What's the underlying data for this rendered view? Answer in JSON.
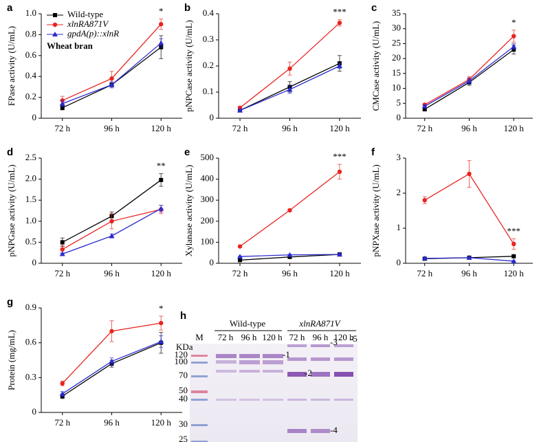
{
  "chart_data": [
    {
      "type": "line",
      "panel_label": "a",
      "ylabel": "FPase activity (U/mL)",
      "categories": [
        "72 h",
        "96 h",
        "120 h"
      ],
      "ylim": [
        0,
        1
      ],
      "yticks": [
        0,
        0.2,
        0.4,
        0.6,
        0.8,
        {
          "value": 1,
          "label": "1.0"
        }
      ],
      "annotation": "*",
      "note": "Wheat bran",
      "legend": "upper left",
      "series": [
        {
          "name": "Wild-type",
          "color": "#000000",
          "marker": "square",
          "values": [
            0.1,
            0.32,
            0.68
          ],
          "errors": [
            0.02,
            0.02,
            0.11
          ]
        },
        {
          "name": "xlnRA871V",
          "color": "#e8231f",
          "marker": "circle",
          "values": [
            0.17,
            0.38,
            0.9
          ],
          "errors": [
            0.04,
            0.07,
            0.05
          ]
        },
        {
          "name": "gpdA(p)::xlnR",
          "color": "#2a2ad0",
          "marker": "triangle",
          "values": [
            0.14,
            0.32,
            0.72
          ],
          "errors": [
            0.03,
            0.03,
            0.04
          ]
        }
      ]
    },
    {
      "type": "line",
      "panel_label": "b",
      "ylabel": "pNPCase activity (U/mL)",
      "categories": [
        "72 h",
        "96 h",
        "120 h"
      ],
      "ylim": [
        0,
        0.4
      ],
      "yticks": [
        0,
        0.1,
        0.2,
        0.3,
        0.4
      ],
      "annotation": "***",
      "series": [
        {
          "color": "#000000",
          "marker": "square",
          "values": [
            0.03,
            0.12,
            0.21
          ],
          "errors": [
            0.005,
            0.02,
            0.03
          ]
        },
        {
          "color": "#e8231f",
          "marker": "circle",
          "values": [
            0.04,
            0.19,
            0.365
          ],
          "errors": [
            0.005,
            0.025,
            0.012
          ]
        },
        {
          "color": "#2a2ad0",
          "marker": "triangle",
          "values": [
            0.03,
            0.11,
            0.2
          ],
          "errors": [
            0.005,
            0.015,
            0.01
          ]
        }
      ]
    },
    {
      "type": "line",
      "panel_label": "c",
      "ylabel": "CMCase activity (U/mL)",
      "categories": [
        "72 h",
        "96 h",
        "120 h"
      ],
      "ylim": [
        0,
        35
      ],
      "yticks": [
        0,
        5,
        10,
        15,
        20,
        25,
        30,
        35
      ],
      "annotation": "*",
      "series": [
        {
          "color": "#000000",
          "marker": "square",
          "values": [
            3,
            12,
            23
          ],
          "errors": [
            0.5,
            1,
            1.5
          ]
        },
        {
          "color": "#e8231f",
          "marker": "circle",
          "values": [
            4.5,
            13,
            27.5
          ],
          "errors": [
            0.5,
            1,
            2
          ]
        },
        {
          "color": "#2a2ad0",
          "marker": "triangle",
          "values": [
            4,
            12.5,
            24
          ],
          "errors": [
            0.5,
            1,
            1
          ]
        }
      ]
    },
    {
      "type": "line",
      "panel_label": "d",
      "ylabel": "pNPGase activity (U/mL)",
      "categories": [
        "72 h",
        "96 h",
        "120 h"
      ],
      "ylim": [
        0,
        2.5
      ],
      "yticks": [
        0,
        0.5,
        {
          "value": 1,
          "label": "1.0"
        },
        1.5,
        {
          "value": 2,
          "label": "2.0"
        },
        2.5
      ],
      "annotation": "**",
      "series": [
        {
          "color": "#000000",
          "marker": "square",
          "values": [
            0.5,
            1.12,
            1.98
          ],
          "errors": [
            0.1,
            0.1,
            0.15
          ]
        },
        {
          "color": "#e8231f",
          "marker": "circle",
          "values": [
            0.33,
            1.0,
            1.28
          ],
          "errors": [
            0.1,
            0.18,
            0.1
          ]
        },
        {
          "color": "#2a2ad0",
          "marker": "triangle",
          "values": [
            0.22,
            0.65,
            1.3
          ],
          "errors": [
            0.03,
            0.05,
            0.08
          ]
        }
      ]
    },
    {
      "type": "line",
      "panel_label": "e",
      "ylabel": "Xylanase activity (U/mL)",
      "categories": [
        "72 h",
        "96 h",
        "120 h"
      ],
      "ylim": [
        0,
        500
      ],
      "yticks": [
        0,
        100,
        200,
        300,
        400,
        500
      ],
      "annotation": "***",
      "series": [
        {
          "color": "#000000",
          "marker": "square",
          "values": [
            15,
            30,
            42
          ],
          "errors": [
            2,
            2,
            3
          ]
        },
        {
          "color": "#e8231f",
          "marker": "circle",
          "values": [
            80,
            252,
            435
          ],
          "errors": [
            3,
            5,
            35
          ]
        },
        {
          "color": "#2a2ad0",
          "marker": "triangle",
          "values": [
            32,
            40,
            42
          ],
          "errors": [
            2,
            2,
            3
          ]
        }
      ]
    },
    {
      "type": "line",
      "panel_label": "f",
      "ylabel": "pNPXase activity (U/mL)",
      "categories": [
        "72 h",
        "96 h",
        "120 h"
      ],
      "ylim": [
        0,
        3
      ],
      "yticks": [
        0,
        1,
        2,
        3
      ],
      "annotation": "***",
      "series": [
        {
          "color": "#000000",
          "marker": "square",
          "values": [
            0.13,
            0.16,
            0.2
          ],
          "errors": [
            0.02,
            0.02,
            0.02
          ]
        },
        {
          "color": "#e8231f",
          "marker": "circle",
          "values": [
            1.8,
            2.55,
            0.55
          ],
          "errors": [
            0.1,
            0.38,
            0.15
          ]
        },
        {
          "color": "#2a2ad0",
          "marker": "triangle",
          "values": [
            0.14,
            0.16,
            0.06
          ],
          "errors": [
            0.02,
            0.02,
            0.02
          ]
        }
      ]
    },
    {
      "type": "line",
      "panel_label": "g",
      "ylabel": "Protein (mg/mL)",
      "categories": [
        "72 h",
        "96 h",
        "120 h"
      ],
      "ylim": [
        0,
        0.9
      ],
      "yticks": [
        0,
        0.3,
        0.6,
        0.9
      ],
      "annotation": "*",
      "series": [
        {
          "color": "#000000",
          "marker": "square",
          "values": [
            0.14,
            0.42,
            0.6
          ],
          "errors": [
            0.02,
            0.03,
            0.09
          ]
        },
        {
          "color": "#e8231f",
          "marker": "circle",
          "values": [
            0.25,
            0.7,
            0.77
          ],
          "errors": [
            0.02,
            0.09,
            0.06
          ]
        },
        {
          "color": "#2a2ad0",
          "marker": "triangle",
          "values": [
            0.16,
            0.44,
            0.61
          ],
          "errors": [
            0.02,
            0.03,
            0.05
          ]
        }
      ]
    }
  ],
  "gel": {
    "panel_label": "h",
    "groups": [
      "Wild-type",
      "xlnRA871V"
    ],
    "marker_lane": "M",
    "unit": "KDa",
    "lanes": [
      "72 h",
      "96 h",
      "120 h",
      "72 h",
      "96 h",
      "120 h"
    ],
    "markers": [
      "120",
      "100",
      "70",
      "50",
      "40",
      "30",
      "25"
    ],
    "bands": [
      "-1",
      "-2",
      "-3",
      "-4",
      "-5"
    ]
  }
}
